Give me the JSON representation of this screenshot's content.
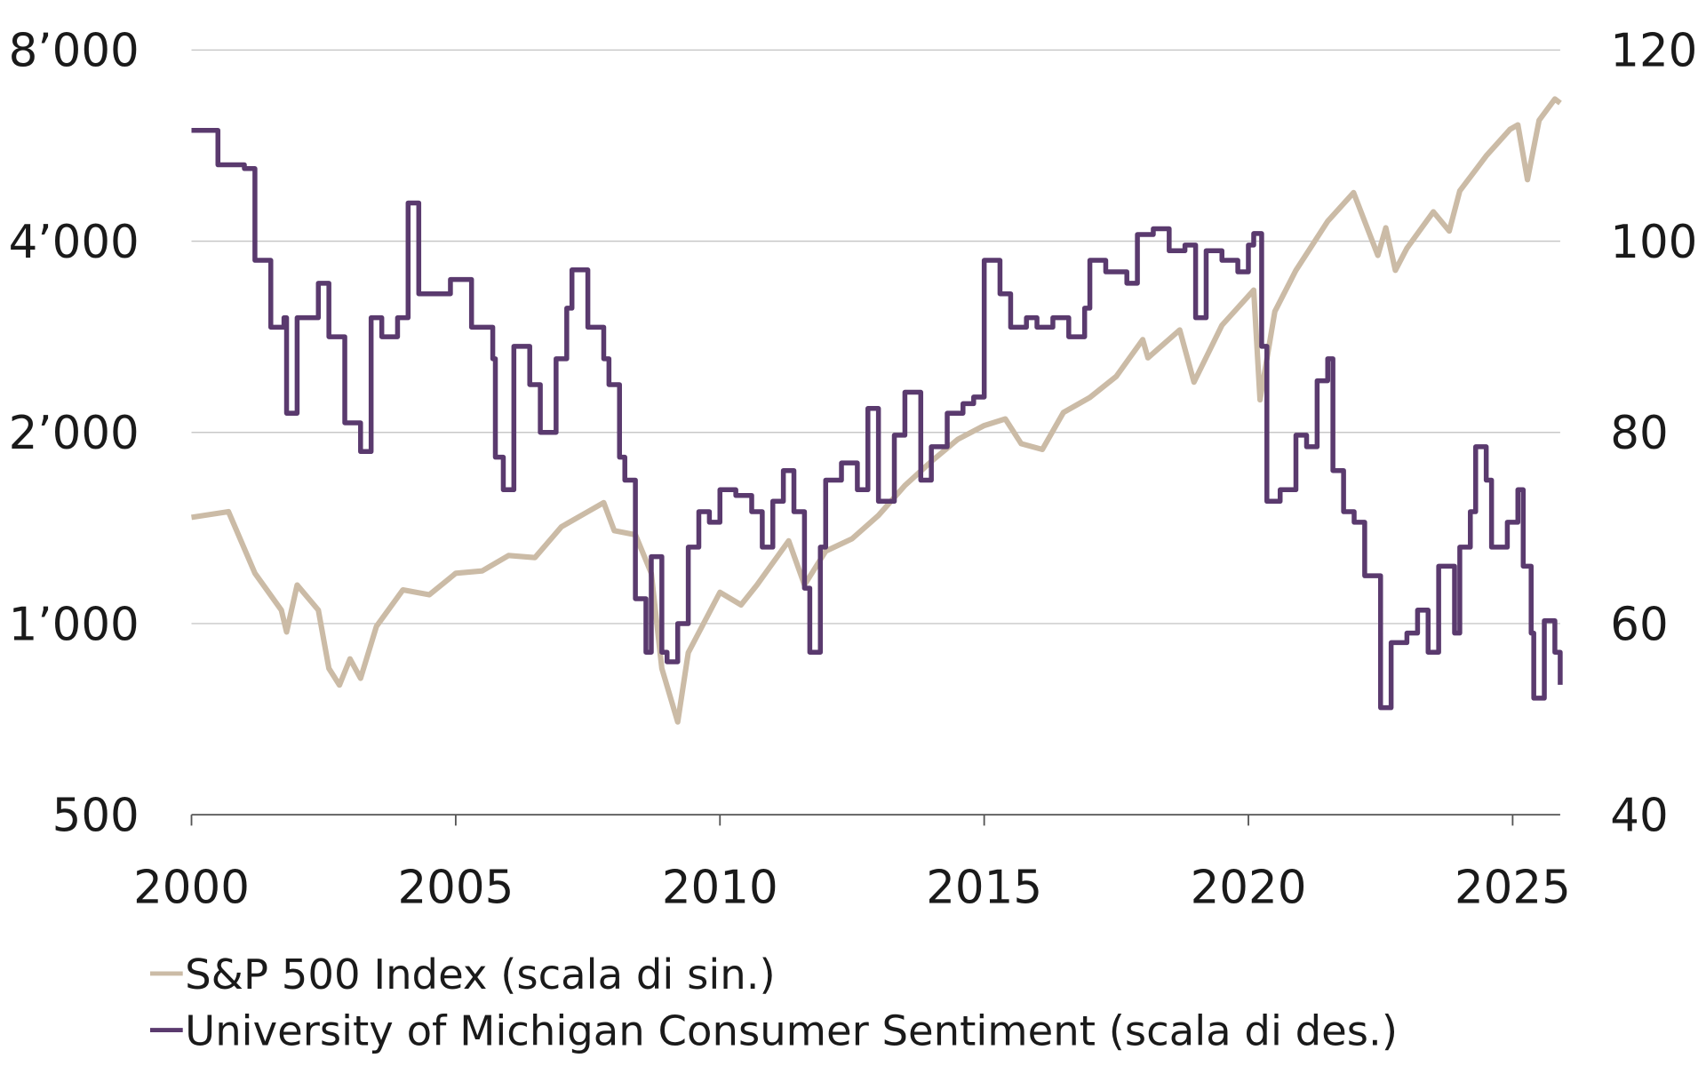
{
  "chart_data": {
    "type": "line",
    "title": "",
    "grid": true,
    "legend_position": "bottom-left",
    "x_ticks": [
      "2000",
      "2005",
      "2010",
      "2015",
      "2020",
      "2025"
    ],
    "x_tick_values": [
      2000,
      2005,
      2010,
      2015,
      2020,
      2025
    ],
    "xlim": [
      2000,
      2025.9
    ],
    "left_axis": {
      "scale": "log",
      "ylim": [
        500,
        8000
      ],
      "ticks": [
        500,
        1000,
        2000,
        4000,
        8000
      ],
      "tick_labels": [
        "500",
        "1’000",
        "2’000",
        "4’000",
        "8’000"
      ]
    },
    "right_axis": {
      "scale": "linear",
      "ylim": [
        40,
        120
      ],
      "ticks": [
        40,
        60,
        80,
        100,
        120
      ],
      "tick_labels": [
        "40",
        "60",
        "80",
        "100",
        "120"
      ]
    },
    "series": [
      {
        "name": "S&P 500 Index (scala di sin.)",
        "axis": "left",
        "color": "#cbbba6",
        "x": [
          2000,
          2000.7,
          2001.2,
          2001.7,
          2001.8,
          2002.0,
          2002.4,
          2002.6,
          2002.8,
          2003.0,
          2003.2,
          2003.5,
          2004.0,
          2004.5,
          2005.0,
          2005.5,
          2006.0,
          2006.5,
          2007.0,
          2007.5,
          2007.8,
          2008.0,
          2008.4,
          2008.7,
          2008.9,
          2009.2,
          2009.4,
          2010.0,
          2010.4,
          2010.7,
          2011.3,
          2011.6,
          2012.0,
          2012.5,
          2013.0,
          2013.5,
          2014.0,
          2014.5,
          2015.0,
          2015.4,
          2015.7,
          2016.1,
          2016.5,
          2017.0,
          2017.5,
          2018.0,
          2018.1,
          2018.7,
          2018.97,
          2019.5,
          2020.1,
          2020.22,
          2020.5,
          2020.9,
          2021.5,
          2021.99,
          2022.45,
          2022.6,
          2022.78,
          2023.0,
          2023.5,
          2023.8,
          2024.0,
          2024.5,
          2024.95,
          2025.1,
          2025.28,
          2025.5,
          2025.8,
          2025.9
        ],
        "values": [
          1470,
          1500,
          1200,
          1050,
          970,
          1150,
          1050,
          850,
          800,
          880,
          820,
          990,
          1130,
          1110,
          1200,
          1210,
          1280,
          1270,
          1420,
          1500,
          1550,
          1400,
          1380,
          1200,
          850,
          700,
          900,
          1120,
          1070,
          1150,
          1350,
          1150,
          1300,
          1360,
          1480,
          1650,
          1800,
          1950,
          2050,
          2100,
          1920,
          1880,
          2150,
          2270,
          2450,
          2800,
          2620,
          2900,
          2400,
          2950,
          3350,
          2250,
          3100,
          3600,
          4300,
          4770,
          3800,
          4200,
          3600,
          3900,
          4450,
          4150,
          4800,
          5450,
          6000,
          6100,
          5000,
          6200,
          6700,
          6600
        ]
      },
      {
        "name": "University of Michigan Consumer Sentiment (scala di des.)",
        "axis": "right",
        "color": "#5a3a6e",
        "x": [
          2000,
          2000.5,
          2001.0,
          2001.2,
          2001.5,
          2001.75,
          2001.8,
          2002.0,
          2002.4,
          2002.6,
          2002.9,
          2003.2,
          2003.4,
          2003.6,
          2003.9,
          2004.1,
          2004.3,
          2004.6,
          2004.9,
          2005.3,
          2005.7,
          2005.75,
          2005.9,
          2006.1,
          2006.4,
          2006.6,
          2006.9,
          2007.1,
          2007.2,
          2007.5,
          2007.8,
          2007.9,
          2008.1,
          2008.2,
          2008.4,
          2008.6,
          2008.7,
          2008.9,
          2009.0,
          2009.2,
          2009.4,
          2009.6,
          2009.8,
          2010.0,
          2010.3,
          2010.6,
          2010.8,
          2011.0,
          2011.2,
          2011.4,
          2011.6,
          2011.7,
          2011.9,
          2012.0,
          2012.3,
          2012.6,
          2012.8,
          2013.0,
          2013.3,
          2013.5,
          2013.8,
          2014.0,
          2014.3,
          2014.6,
          2014.8,
          2015.0,
          2015.3,
          2015.5,
          2015.8,
          2016.0,
          2016.3,
          2016.6,
          2016.9,
          2017.0,
          2017.3,
          2017.7,
          2017.9,
          2018.2,
          2018.5,
          2018.8,
          2019.0,
          2019.2,
          2019.5,
          2019.8,
          2020.0,
          2020.1,
          2020.25,
          2020.35,
          2020.6,
          2020.9,
          2021.1,
          2021.3,
          2021.5,
          2021.6,
          2021.8,
          2022.0,
          2022.2,
          2022.5,
          2022.7,
          2023.0,
          2023.2,
          2023.4,
          2023.6,
          2023.9,
          2024.0,
          2024.2,
          2024.3,
          2024.5,
          2024.6,
          2024.9,
          2025.1,
          2025.2,
          2025.35,
          2025.4,
          2025.6,
          2025.8,
          2025.9
        ],
        "values": [
          111.6,
          108,
          107.6,
          98,
          91,
          92,
          82,
          92,
          95.6,
          90,
          81,
          78,
          92,
          90,
          92,
          104,
          94.5,
          94.5,
          96,
          91,
          87.7,
          77.4,
          74,
          89,
          85,
          80,
          87.7,
          93,
          97,
          91,
          87.7,
          85,
          77.4,
          75,
          62.6,
          57,
          67,
          57,
          56,
          60,
          68,
          71.7,
          70.6,
          74,
          73.4,
          71.7,
          68,
          72.8,
          76,
          71.7,
          63.7,
          57,
          68,
          75,
          76.8,
          74,
          82.5,
          72.8,
          79.7,
          84.2,
          75,
          78.5,
          82,
          83,
          83.7,
          98,
          94.5,
          91,
          92,
          91,
          92,
          90,
          93,
          98,
          96.8,
          95.6,
          100.7,
          101.3,
          99,
          99.6,
          92,
          99,
          98,
          96.8,
          99.6,
          100.8,
          89,
          72.8,
          74,
          79.7,
          78.5,
          85.4,
          87.7,
          76,
          71.7,
          70.6,
          65,
          51.2,
          58,
          59,
          61.4,
          57,
          66,
          59,
          68,
          71.7,
          78.5,
          75,
          68,
          70.6,
          74,
          66,
          59,
          52.2,
          60.3,
          57,
          53.6
        ]
      }
    ],
    "legend": [
      {
        "label": "S&P 500 Index (scala di sin.)",
        "color": "#cbbba6"
      },
      {
        "label": "University of Michigan Consumer Sentiment (scala di des.)",
        "color": "#5a3a6e"
      }
    ]
  }
}
